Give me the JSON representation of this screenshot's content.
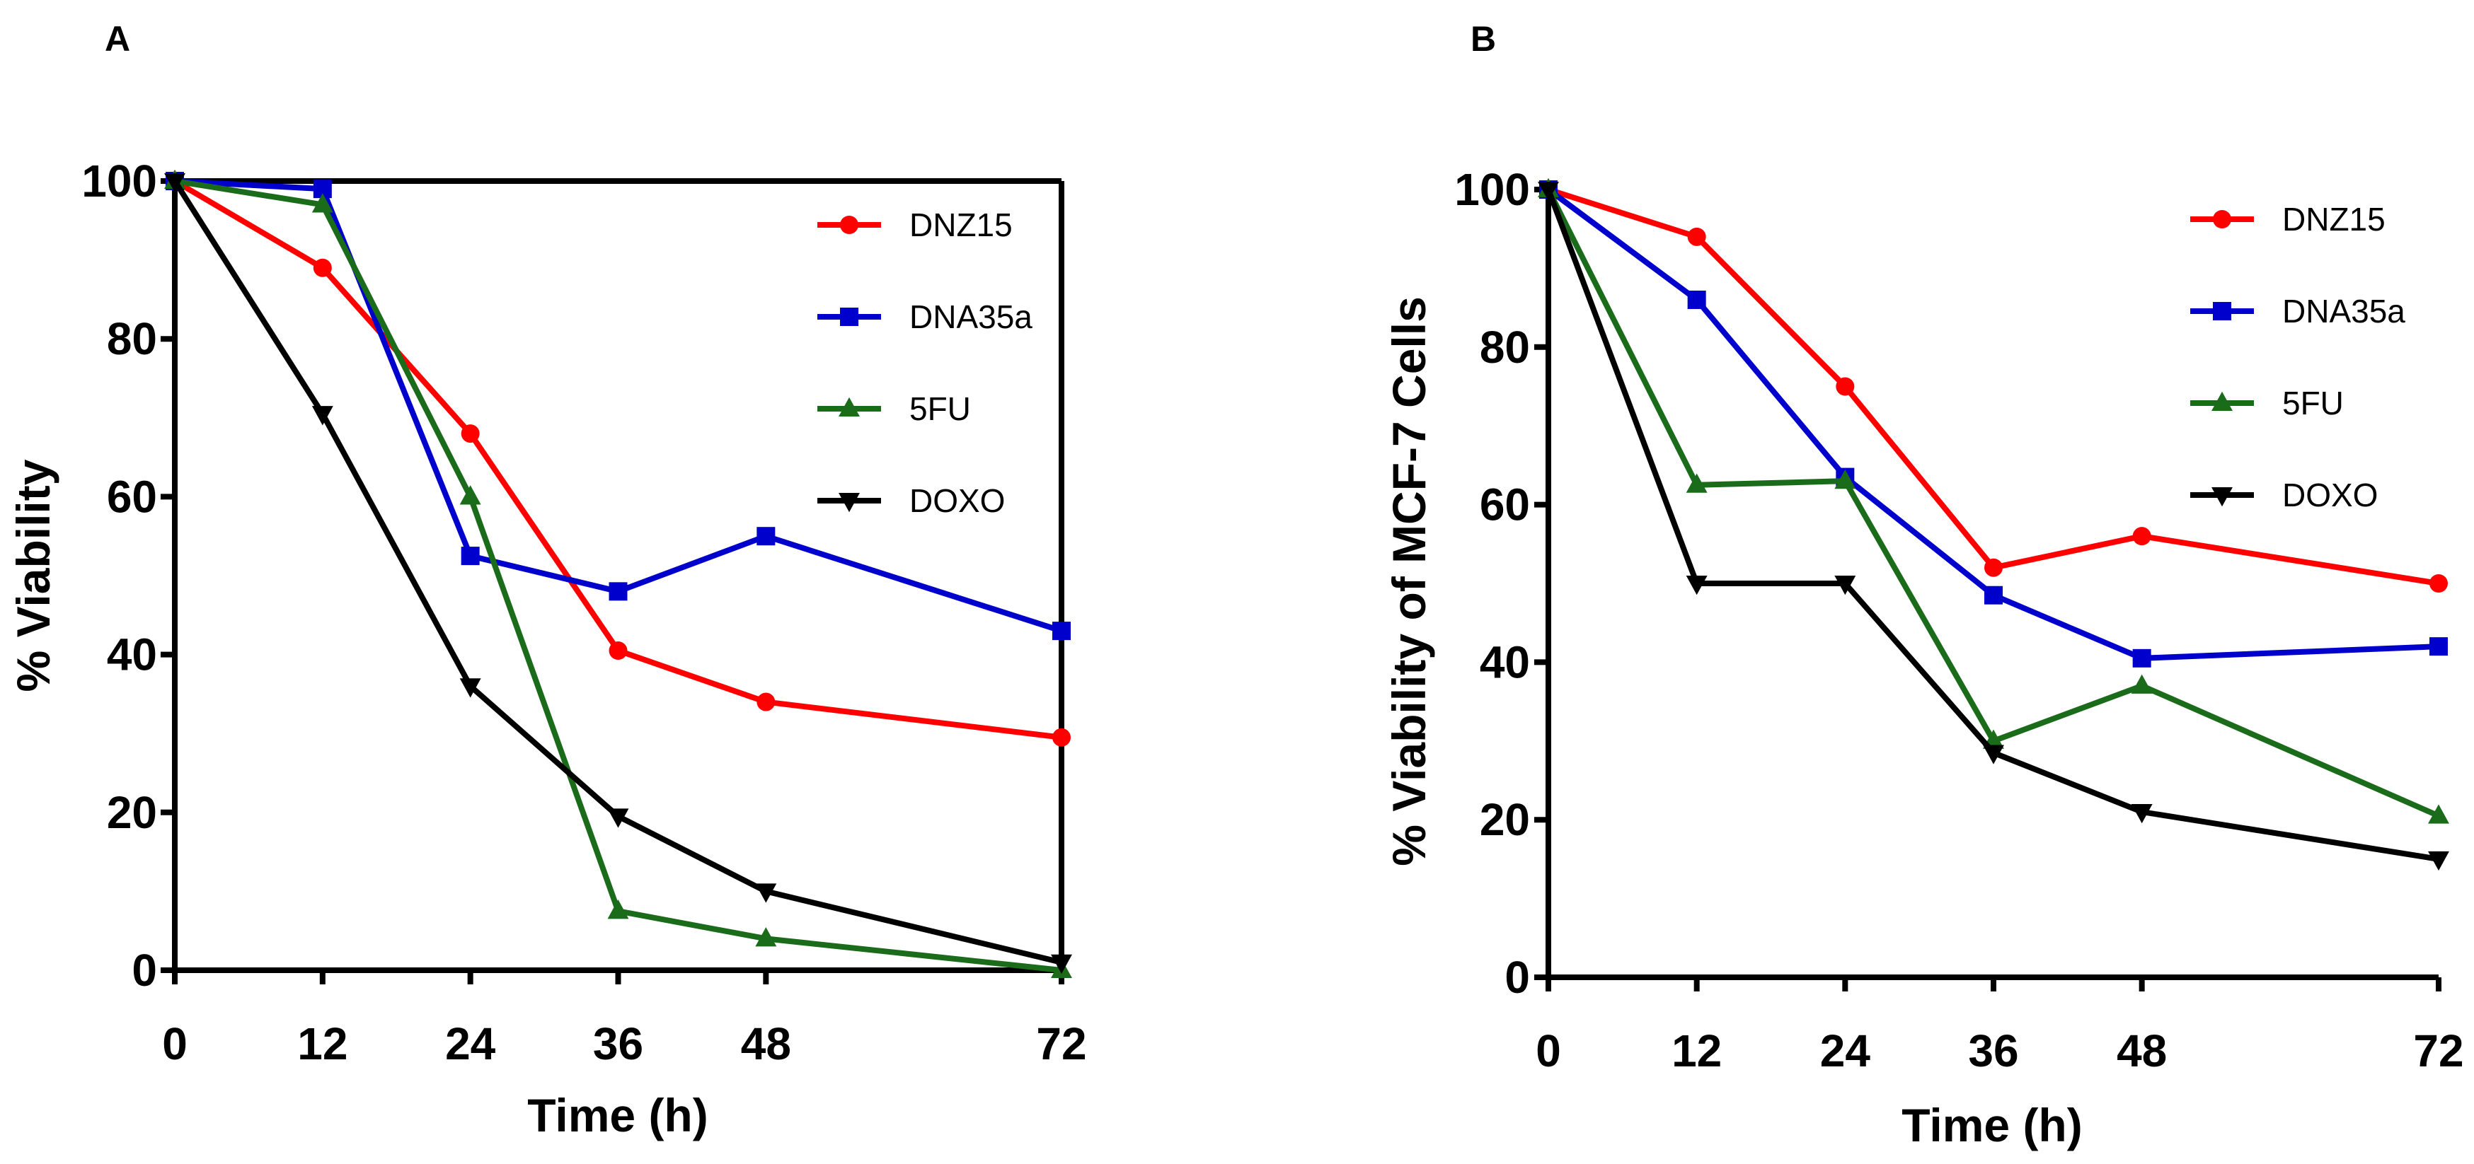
{
  "chart_data": [
    {
      "panel": "A",
      "type": "line",
      "title": "",
      "xlabel": "Time (h)",
      "ylabel": "% Viability",
      "x": [
        0,
        12,
        24,
        36,
        48,
        72
      ],
      "xticks": [
        "0",
        "12",
        "24",
        "36",
        "48",
        "72"
      ],
      "yticks": [
        "0",
        "20",
        "40",
        "60",
        "80",
        "100"
      ],
      "xlim": [
        0,
        72
      ],
      "ylim": [
        0,
        100
      ],
      "grid": false,
      "legend_position": "top-right",
      "series": [
        {
          "name": "DNZ15",
          "color": "#ff0000",
          "marker": "circle",
          "values": [
            100,
            89,
            68,
            40.5,
            34,
            29.5
          ]
        },
        {
          "name": "DNA35a",
          "color": "#0000cc",
          "marker": "square",
          "values": [
            100,
            99,
            52.5,
            48,
            55,
            43
          ]
        },
        {
          "name": "5FU",
          "color": "#1a6b1a",
          "marker": "triangle-up",
          "values": [
            100,
            97,
            60,
            7.5,
            4,
            0
          ]
        },
        {
          "name": "DOXO",
          "color": "#000000",
          "marker": "triangle-down",
          "values": [
            100,
            70.5,
            36,
            19.5,
            10,
            1
          ]
        }
      ]
    },
    {
      "panel": "B",
      "type": "line",
      "title": "",
      "xlabel": "Time (h)",
      "ylabel": "% Viability of MCF-7 Cells",
      "x": [
        0,
        12,
        24,
        36,
        48,
        72
      ],
      "xticks": [
        "0",
        "12",
        "24",
        "36",
        "48",
        "72"
      ],
      "yticks": [
        "0",
        "20",
        "40",
        "60",
        "80",
        "100"
      ],
      "xlim": [
        0,
        72
      ],
      "ylim": [
        0,
        100
      ],
      "grid": false,
      "legend_position": "top-right",
      "series": [
        {
          "name": "DNZ15",
          "color": "#ff0000",
          "marker": "circle",
          "values": [
            100,
            94,
            75,
            52,
            56,
            50
          ]
        },
        {
          "name": "DNA35a",
          "color": "#0000cc",
          "marker": "square",
          "values": [
            100,
            86,
            63.5,
            48.5,
            40.5,
            42
          ]
        },
        {
          "name": "5FU",
          "color": "#1a6b1a",
          "marker": "triangle-up",
          "values": [
            100,
            62.5,
            63,
            30,
            37,
            20.5
          ]
        },
        {
          "name": "DOXO",
          "color": "#000000",
          "marker": "triangle-down",
          "values": [
            100,
            50,
            50,
            28.5,
            21,
            15
          ]
        }
      ]
    }
  ]
}
